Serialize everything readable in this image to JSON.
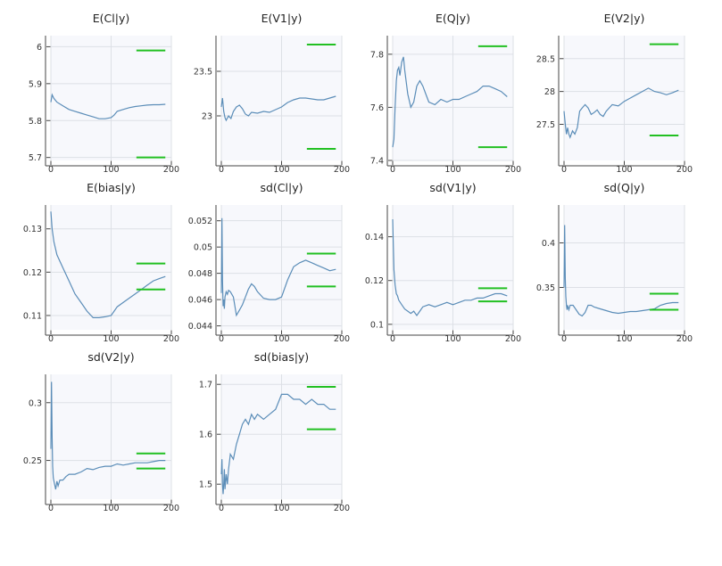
{
  "colors": {
    "series": "#5b8db8",
    "reference": "#22c022",
    "panel_bg": "#f7f8fc",
    "grid": "#dde0e6"
  },
  "chart_data": [
    {
      "type": "line",
      "title": "E(Cl|y)",
      "xlim": [
        0,
        200
      ],
      "ylim": [
        5.692,
        6.03
      ],
      "xticks": [
        "0",
        "100",
        "200"
      ],
      "yticks": [
        5.7,
        5.8,
        5.9,
        6
      ],
      "ytick_labels": [
        "5.7",
        "5.8",
        "5.9",
        "6"
      ],
      "reference_lines": [
        5.99,
        5.7
      ],
      "x": [
        0,
        2,
        5,
        10,
        20,
        30,
        40,
        50,
        60,
        70,
        80,
        90,
        100,
        105,
        110,
        120,
        130,
        140,
        150,
        160,
        170,
        180,
        190
      ],
      "y": [
        5.85,
        5.87,
        5.86,
        5.85,
        5.84,
        5.83,
        5.825,
        5.82,
        5.815,
        5.81,
        5.805,
        5.805,
        5.808,
        5.815,
        5.825,
        5.83,
        5.835,
        5.838,
        5.84,
        5.842,
        5.843,
        5.843,
        5.844
      ]
    },
    {
      "type": "line",
      "title": "E(V1|y)",
      "xlim": [
        0,
        200
      ],
      "ylim": [
        22.5,
        23.9
      ],
      "xticks": [
        "0",
        "100",
        "200"
      ],
      "yticks": [
        23,
        23.5
      ],
      "ytick_labels": [
        "23",
        "23.5"
      ],
      "reference_lines": [
        23.8,
        22.63
      ],
      "x": [
        0,
        2,
        4,
        6,
        8,
        12,
        16,
        20,
        25,
        30,
        35,
        40,
        45,
        50,
        60,
        70,
        80,
        90,
        100,
        110,
        120,
        130,
        140,
        150,
        160,
        170,
        180,
        190
      ],
      "y": [
        23.1,
        23.2,
        23.05,
        22.98,
        22.95,
        23.0,
        22.97,
        23.05,
        23.1,
        23.12,
        23.08,
        23.02,
        23.0,
        23.04,
        23.03,
        23.05,
        23.04,
        23.07,
        23.1,
        23.15,
        23.18,
        23.2,
        23.2,
        23.19,
        23.18,
        23.18,
        23.2,
        23.22
      ]
    },
    {
      "type": "line",
      "title": "E(Q|y)",
      "xlim": [
        0,
        200
      ],
      "ylim": [
        7.4,
        7.87
      ],
      "xticks": [
        "0",
        "100",
        "200"
      ],
      "yticks": [
        7.4,
        7.6,
        7.8
      ],
      "ytick_labels": [
        "7.4",
        "7.6",
        "7.8"
      ],
      "reference_lines": [
        7.83,
        7.45
      ],
      "x": [
        0,
        2,
        4,
        6,
        8,
        10,
        12,
        15,
        18,
        20,
        25,
        30,
        35,
        40,
        45,
        50,
        55,
        60,
        70,
        80,
        90,
        100,
        110,
        120,
        130,
        140,
        150,
        160,
        170,
        180,
        190
      ],
      "y": [
        7.45,
        7.48,
        7.6,
        7.7,
        7.74,
        7.75,
        7.72,
        7.77,
        7.79,
        7.74,
        7.65,
        7.6,
        7.62,
        7.68,
        7.7,
        7.68,
        7.65,
        7.62,
        7.61,
        7.63,
        7.62,
        7.63,
        7.63,
        7.64,
        7.65,
        7.66,
        7.68,
        7.68,
        7.67,
        7.66,
        7.64
      ]
    },
    {
      "type": "line",
      "title": "E(V2|y)",
      "xlim": [
        0,
        200
      ],
      "ylim": [
        26.95,
        28.85
      ],
      "xticks": [
        "0",
        "100",
        "200"
      ],
      "yticks": [
        27.5,
        28,
        28.5
      ],
      "ytick_labels": [
        "27.5",
        "28",
        "28.5"
      ],
      "reference_lines": [
        28.72,
        27.33
      ],
      "x": [
        0,
        2,
        4,
        6,
        8,
        10,
        14,
        18,
        22,
        26,
        30,
        35,
        40,
        45,
        50,
        55,
        60,
        65,
        70,
        80,
        90,
        100,
        110,
        120,
        130,
        140,
        150,
        160,
        170,
        180,
        190
      ],
      "y": [
        27.7,
        27.5,
        27.35,
        27.45,
        27.35,
        27.3,
        27.4,
        27.35,
        27.45,
        27.7,
        27.75,
        27.8,
        27.75,
        27.65,
        27.68,
        27.72,
        27.65,
        27.62,
        27.7,
        27.8,
        27.78,
        27.85,
        27.9,
        27.95,
        28.0,
        28.05,
        28.0,
        27.98,
        27.95,
        27.98,
        28.02
      ]
    },
    {
      "type": "line",
      "title": "E(bias|y)",
      "xlim": [
        0,
        200
      ],
      "ylim": [
        0.1067,
        0.1355
      ],
      "xticks": [
        "0",
        "100",
        "200"
      ],
      "yticks": [
        0.11,
        0.12,
        0.13
      ],
      "ytick_labels": [
        "0.11",
        "0.12",
        "0.13"
      ],
      "reference_lines": [
        0.122,
        0.116
      ],
      "x": [
        0,
        2,
        5,
        10,
        20,
        30,
        40,
        50,
        60,
        70,
        80,
        90,
        100,
        110,
        120,
        130,
        140,
        150,
        160,
        170,
        180,
        190
      ],
      "y": [
        0.134,
        0.13,
        0.127,
        0.124,
        0.121,
        0.118,
        0.115,
        0.113,
        0.111,
        0.1095,
        0.1095,
        0.1097,
        0.11,
        0.112,
        0.113,
        0.114,
        0.115,
        0.116,
        0.117,
        0.118,
        0.1185,
        0.119
      ]
    },
    {
      "type": "line",
      "title": "sd(Cl|y)",
      "xlim": [
        0,
        200
      ],
      "ylim": [
        0.0437,
        0.0532
      ],
      "xticks": [
        "0",
        "100",
        "200"
      ],
      "yticks": [
        0.044,
        0.046,
        0.048,
        0.05,
        0.052
      ],
      "ytick_labels": [
        "0.044",
        "0.046",
        "0.048",
        "0.05",
        "0.052"
      ],
      "reference_lines": [
        0.0495,
        0.047
      ],
      "x": [
        0,
        1,
        2,
        3,
        4,
        5,
        6,
        8,
        10,
        12,
        15,
        20,
        25,
        30,
        35,
        40,
        45,
        50,
        55,
        60,
        70,
        80,
        90,
        100,
        110,
        120,
        130,
        140,
        150,
        160,
        170,
        180,
        190
      ],
      "y": [
        0.0465,
        0.0522,
        0.0475,
        0.0455,
        0.046,
        0.0453,
        0.0462,
        0.0466,
        0.0464,
        0.0467,
        0.0466,
        0.0462,
        0.0448,
        0.0452,
        0.0456,
        0.0462,
        0.0468,
        0.0472,
        0.047,
        0.0466,
        0.0461,
        0.046,
        0.046,
        0.0462,
        0.0475,
        0.0485,
        0.0488,
        0.049,
        0.0488,
        0.0486,
        0.0484,
        0.0482,
        0.0483
      ]
    },
    {
      "type": "line",
      "title": "sd(V1|y)",
      "xlim": [
        0,
        200
      ],
      "ylim": [
        0.0975,
        0.1545
      ],
      "xticks": [
        "0",
        "100",
        "200"
      ],
      "yticks": [
        0.1,
        0.12,
        0.14
      ],
      "ytick_labels": [
        "0.1",
        "0.12",
        "0.14"
      ],
      "reference_lines": [
        0.1165,
        0.1105
      ],
      "x": [
        0,
        2,
        4,
        6,
        8,
        10,
        15,
        20,
        25,
        30,
        35,
        40,
        45,
        50,
        60,
        70,
        80,
        90,
        100,
        110,
        120,
        130,
        140,
        150,
        160,
        170,
        180,
        190
      ],
      "y": [
        0.148,
        0.125,
        0.118,
        0.114,
        0.113,
        0.111,
        0.109,
        0.107,
        0.106,
        0.105,
        0.106,
        0.104,
        0.106,
        0.108,
        0.109,
        0.108,
        0.109,
        0.11,
        0.109,
        0.11,
        0.111,
        0.111,
        0.112,
        0.112,
        0.113,
        0.114,
        0.114,
        0.113
      ]
    },
    {
      "type": "line",
      "title": "sd(Q|y)",
      "xlim": [
        0,
        200
      ],
      "ylim": [
        0.3025,
        0.4425
      ],
      "xticks": [
        "0",
        "100",
        "200"
      ],
      "yticks": [
        0.35,
        0.4
      ],
      "ytick_labels": [
        "0.35",
        "0.4"
      ],
      "reference_lines": [
        0.343,
        0.325
      ],
      "x": [
        0,
        1,
        2,
        3,
        4,
        5,
        6,
        8,
        10,
        15,
        20,
        25,
        30,
        35,
        40,
        45,
        50,
        60,
        70,
        80,
        90,
        100,
        110,
        120,
        130,
        140,
        150,
        160,
        170,
        180,
        190
      ],
      "y": [
        0.35,
        0.42,
        0.36,
        0.34,
        0.33,
        0.325,
        0.33,
        0.325,
        0.33,
        0.33,
        0.325,
        0.32,
        0.318,
        0.322,
        0.33,
        0.33,
        0.328,
        0.326,
        0.324,
        0.322,
        0.321,
        0.322,
        0.323,
        0.323,
        0.324,
        0.325,
        0.326,
        0.33,
        0.332,
        0.333,
        0.333
      ]
    },
    {
      "type": "line",
      "title": "sd(V2|y)",
      "xlim": [
        0,
        200
      ],
      "ylim": [
        0.2165,
        0.3245
      ],
      "xticks": [
        "0",
        "100",
        "200"
      ],
      "yticks": [
        0.25,
        0.3
      ],
      "ytick_labels": [
        "0.25",
        "0.3"
      ],
      "reference_lines": [
        0.256,
        0.243
      ],
      "x": [
        0,
        1,
        2,
        3,
        4,
        6,
        8,
        10,
        12,
        15,
        20,
        25,
        30,
        40,
        50,
        60,
        70,
        80,
        90,
        100,
        110,
        120,
        130,
        140,
        150,
        160,
        170,
        180,
        190
      ],
      "y": [
        0.26,
        0.318,
        0.27,
        0.245,
        0.235,
        0.23,
        0.225,
        0.232,
        0.228,
        0.233,
        0.233,
        0.236,
        0.238,
        0.238,
        0.24,
        0.243,
        0.242,
        0.244,
        0.245,
        0.245,
        0.247,
        0.246,
        0.247,
        0.248,
        0.248,
        0.248,
        0.249,
        0.25,
        0.25
      ]
    },
    {
      "type": "line",
      "title": "sd(bias|y)",
      "xlim": [
        0,
        200
      ],
      "ylim": [
        1.47,
        1.72
      ],
      "xticks": [
        "0",
        "100",
        "200"
      ],
      "yticks": [
        1.5,
        1.6,
        1.7
      ],
      "ytick_labels": [
        "1.5",
        "1.6",
        "1.7"
      ],
      "reference_lines": [
        1.695,
        1.61
      ],
      "x": [
        0,
        1,
        2,
        3,
        4,
        5,
        6,
        8,
        10,
        12,
        15,
        20,
        25,
        30,
        35,
        40,
        45,
        50,
        55,
        60,
        70,
        80,
        90,
        100,
        110,
        120,
        130,
        140,
        150,
        160,
        170,
        180,
        190
      ],
      "y": [
        1.52,
        1.55,
        1.5,
        1.48,
        1.5,
        1.53,
        1.49,
        1.52,
        1.5,
        1.53,
        1.56,
        1.55,
        1.58,
        1.6,
        1.62,
        1.63,
        1.62,
        1.64,
        1.63,
        1.64,
        1.63,
        1.64,
        1.65,
        1.68,
        1.68,
        1.67,
        1.67,
        1.66,
        1.67,
        1.66,
        1.66,
        1.65,
        1.65
      ]
    }
  ]
}
